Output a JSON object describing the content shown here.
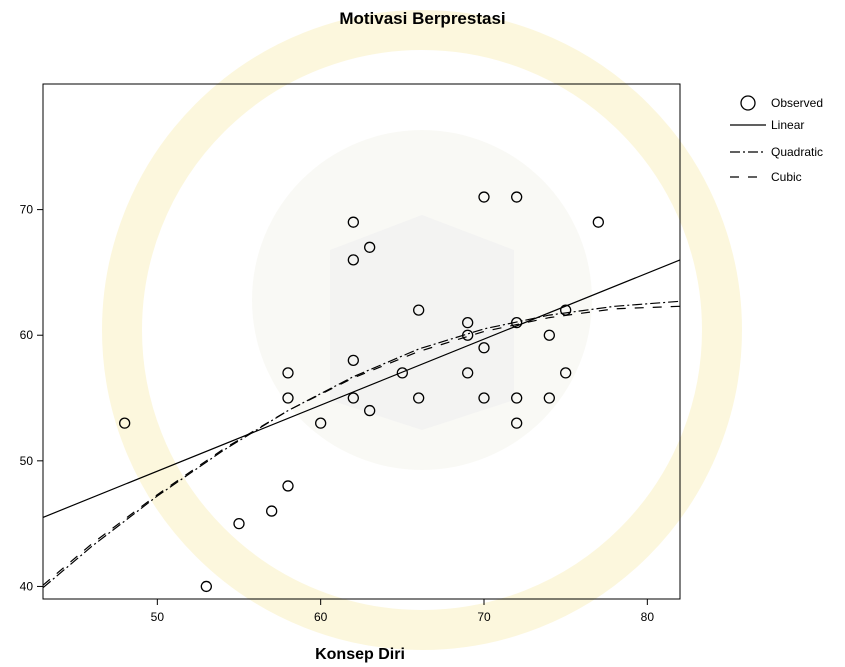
{
  "chart_data": {
    "type": "scatter",
    "title": "Motivasi Berprestasi",
    "xlabel": "Konsep Diri",
    "ylabel": "",
    "xlim": [
      43,
      82
    ],
    "ylim": [
      39,
      80
    ],
    "x_ticks": [
      50,
      60,
      70,
      80
    ],
    "y_ticks": [
      40,
      50,
      60,
      70
    ],
    "grid": false,
    "legend_position": "top-right",
    "observed": {
      "name": "Observed",
      "points": [
        {
          "x": 48,
          "y": 53
        },
        {
          "x": 53,
          "y": 40
        },
        {
          "x": 55,
          "y": 45
        },
        {
          "x": 57,
          "y": 46
        },
        {
          "x": 58,
          "y": 48
        },
        {
          "x": 58,
          "y": 55
        },
        {
          "x": 58,
          "y": 57
        },
        {
          "x": 60,
          "y": 53
        },
        {
          "x": 62,
          "y": 69
        },
        {
          "x": 62,
          "y": 66
        },
        {
          "x": 62,
          "y": 58
        },
        {
          "x": 62,
          "y": 55
        },
        {
          "x": 63,
          "y": 67
        },
        {
          "x": 63,
          "y": 54
        },
        {
          "x": 65,
          "y": 57
        },
        {
          "x": 66,
          "y": 62
        },
        {
          "x": 66,
          "y": 55
        },
        {
          "x": 69,
          "y": 61
        },
        {
          "x": 69,
          "y": 60
        },
        {
          "x": 69,
          "y": 57
        },
        {
          "x": 70,
          "y": 71
        },
        {
          "x": 70,
          "y": 59
        },
        {
          "x": 70,
          "y": 55
        },
        {
          "x": 72,
          "y": 71
        },
        {
          "x": 72,
          "y": 61
        },
        {
          "x": 72,
          "y": 55
        },
        {
          "x": 72,
          "y": 53
        },
        {
          "x": 74,
          "y": 60
        },
        {
          "x": 74,
          "y": 55
        },
        {
          "x": 75,
          "y": 62
        },
        {
          "x": 75,
          "y": 57
        },
        {
          "x": 77,
          "y": 69
        }
      ]
    },
    "fits": [
      {
        "name": "Linear",
        "style": "solid",
        "points": [
          [
            43,
            45.5
          ],
          [
            82,
            66.0
          ]
        ]
      },
      {
        "name": "Quadratic",
        "style": "dash-dot",
        "points": [
          [
            43,
            39.9
          ],
          [
            46,
            43.2
          ],
          [
            50,
            47.2
          ],
          [
            54,
            50.8
          ],
          [
            58,
            54.0
          ],
          [
            62,
            56.7
          ],
          [
            66,
            58.9
          ],
          [
            70,
            60.5
          ],
          [
            74,
            61.6
          ],
          [
            78,
            62.3
          ],
          [
            82,
            62.7
          ]
        ]
      },
      {
        "name": "Cubic",
        "style": "long-dash",
        "points": [
          [
            43,
            40.1
          ],
          [
            46,
            43.4
          ],
          [
            50,
            47.3
          ],
          [
            54,
            50.9
          ],
          [
            58,
            54.0
          ],
          [
            62,
            56.6
          ],
          [
            66,
            58.7
          ],
          [
            70,
            60.3
          ],
          [
            74,
            61.4
          ],
          [
            78,
            62.1
          ],
          [
            82,
            62.3
          ]
        ]
      }
    ]
  },
  "legend": {
    "observed": "Observed",
    "linear": "Linear",
    "quadratic": "Quadratic",
    "cubic": "Cubic"
  }
}
